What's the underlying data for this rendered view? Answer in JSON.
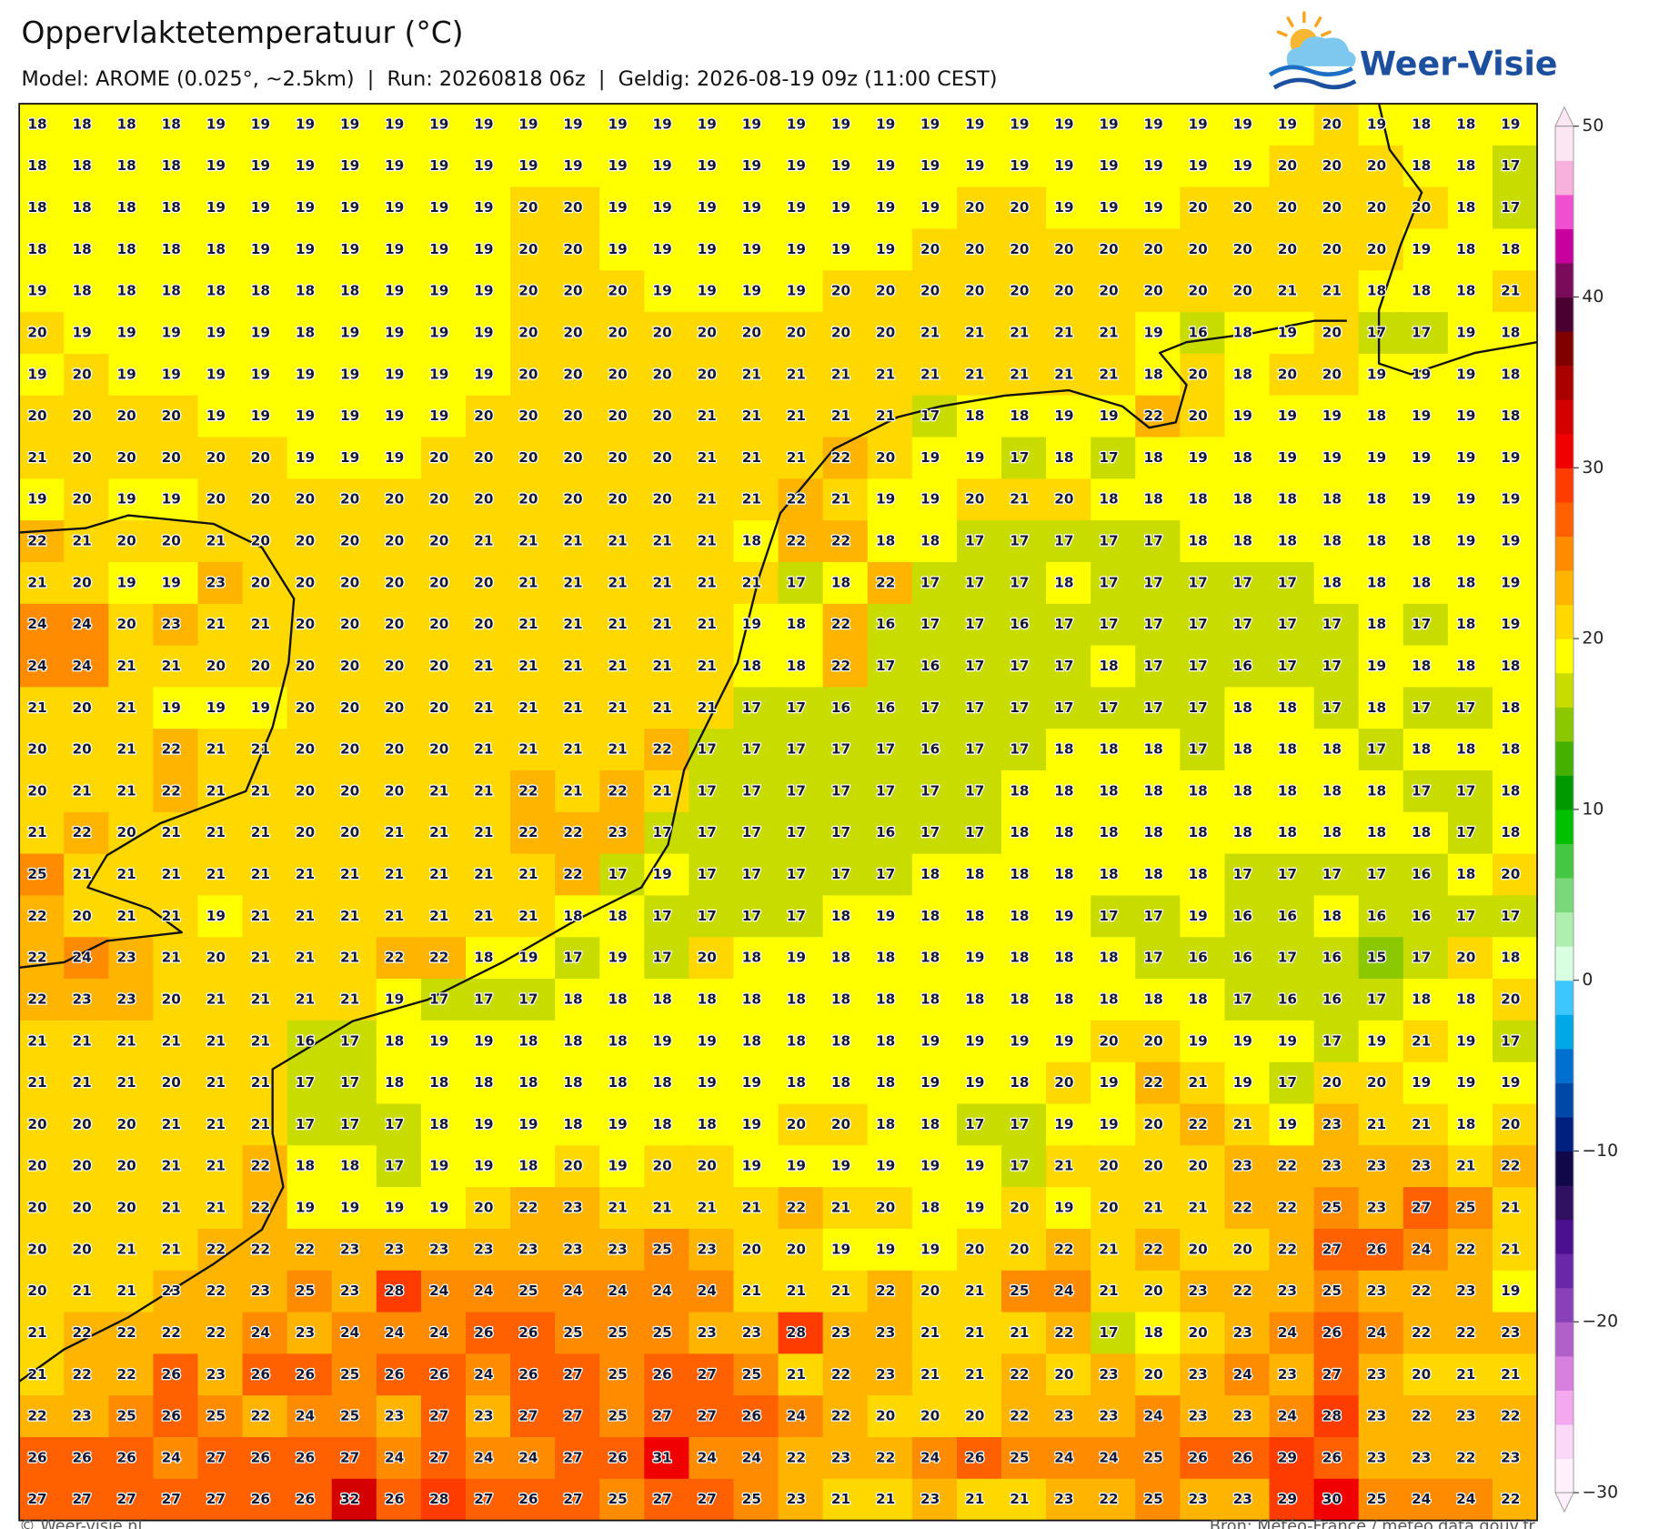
{
  "header": {
    "title": "Oppervlaktetemperatuur (°C)",
    "subtitle": "Model: AROME (0.025°, ~2.5km)  |  Run: 20260818 06z  |  Geldig: 2026-08-19 09z (11:00 CEST)",
    "logo": "Weer-Visie"
  },
  "grid": {
    "values": [
      [
        18,
        18,
        18,
        18,
        19,
        19,
        19,
        19,
        19,
        19,
        19,
        19,
        19,
        19,
        19,
        19,
        19,
        19,
        19,
        19,
        19,
        19,
        19,
        19,
        19,
        19,
        19,
        19,
        19,
        20,
        19,
        18,
        18,
        19
      ],
      [
        18,
        18,
        18,
        18,
        19,
        19,
        19,
        19,
        19,
        19,
        19,
        19,
        19,
        19,
        19,
        19,
        19,
        19,
        19,
        19,
        19,
        19,
        19,
        19,
        19,
        19,
        19,
        19,
        20,
        20,
        20,
        18,
        18,
        17
      ],
      [
        18,
        18,
        18,
        18,
        19,
        19,
        19,
        19,
        19,
        19,
        19,
        20,
        20,
        19,
        19,
        19,
        19,
        19,
        19,
        19,
        19,
        20,
        20,
        19,
        19,
        19,
        20,
        20,
        20,
        20,
        20,
        20,
        18,
        17
      ],
      [
        18,
        18,
        18,
        18,
        18,
        19,
        19,
        19,
        19,
        19,
        19,
        20,
        20,
        19,
        19,
        19,
        19,
        19,
        19,
        19,
        20,
        20,
        20,
        20,
        20,
        20,
        20,
        20,
        20,
        20,
        20,
        19,
        18,
        18
      ],
      [
        19,
        18,
        18,
        18,
        18,
        18,
        18,
        18,
        19,
        19,
        19,
        20,
        20,
        20,
        19,
        19,
        19,
        19,
        20,
        20,
        20,
        20,
        20,
        20,
        20,
        20,
        20,
        20,
        21,
        21,
        18,
        18,
        18,
        21
      ],
      [
        20,
        19,
        19,
        19,
        19,
        19,
        18,
        19,
        19,
        19,
        19,
        20,
        20,
        20,
        20,
        20,
        20,
        20,
        20,
        20,
        21,
        21,
        21,
        21,
        21,
        19,
        16,
        18,
        19,
        20,
        17,
        17,
        19,
        18
      ],
      [
        19,
        20,
        19,
        19,
        19,
        19,
        19,
        19,
        19,
        19,
        19,
        20,
        20,
        20,
        20,
        20,
        21,
        21,
        21,
        21,
        21,
        21,
        21,
        21,
        21,
        18,
        20,
        18,
        20,
        20,
        19,
        19,
        19,
        18
      ],
      [
        20,
        20,
        20,
        20,
        19,
        19,
        19,
        19,
        19,
        19,
        20,
        20,
        20,
        20,
        20,
        21,
        21,
        21,
        21,
        21,
        17,
        18,
        18,
        19,
        19,
        22,
        20,
        19,
        19,
        19,
        18,
        19,
        19,
        18
      ],
      [
        21,
        20,
        20,
        20,
        20,
        20,
        19,
        19,
        19,
        20,
        20,
        20,
        20,
        20,
        20,
        21,
        21,
        21,
        22,
        20,
        19,
        19,
        17,
        18,
        17,
        18,
        19,
        18,
        19,
        19,
        19,
        19,
        19,
        19
      ],
      [
        19,
        20,
        19,
        19,
        20,
        20,
        20,
        20,
        20,
        20,
        20,
        20,
        20,
        20,
        20,
        21,
        21,
        22,
        21,
        19,
        19,
        20,
        21,
        20,
        18,
        18,
        18,
        18,
        18,
        18,
        18,
        19,
        19,
        19
      ],
      [
        22,
        21,
        20,
        20,
        21,
        20,
        20,
        20,
        20,
        20,
        21,
        21,
        21,
        21,
        21,
        21,
        18,
        22,
        22,
        18,
        18,
        17,
        17,
        17,
        17,
        17,
        18,
        18,
        18,
        18,
        18,
        18,
        19,
        19
      ],
      [
        21,
        20,
        19,
        19,
        23,
        20,
        20,
        20,
        20,
        20,
        20,
        21,
        21,
        21,
        21,
        21,
        21,
        17,
        18,
        22,
        17,
        17,
        17,
        18,
        17,
        17,
        17,
        17,
        17,
        18,
        18,
        18,
        18,
        19
      ],
      [
        24,
        24,
        20,
        23,
        21,
        21,
        20,
        20,
        20,
        20,
        20,
        21,
        21,
        21,
        21,
        21,
        19,
        18,
        22,
        16,
        17,
        17,
        16,
        17,
        17,
        17,
        17,
        17,
        17,
        17,
        18,
        17,
        18,
        19
      ],
      [
        24,
        24,
        21,
        21,
        20,
        20,
        20,
        20,
        20,
        20,
        21,
        21,
        21,
        21,
        21,
        21,
        18,
        18,
        22,
        17,
        16,
        17,
        17,
        17,
        18,
        17,
        17,
        16,
        17,
        17,
        19,
        18,
        18,
        18
      ],
      [
        21,
        20,
        21,
        19,
        19,
        19,
        20,
        20,
        20,
        20,
        21,
        21,
        21,
        21,
        21,
        21,
        17,
        17,
        16,
        16,
        17,
        17,
        17,
        17,
        17,
        17,
        17,
        18,
        18,
        17,
        18,
        17,
        17,
        18
      ],
      [
        20,
        20,
        21,
        22,
        21,
        21,
        20,
        20,
        20,
        20,
        21,
        21,
        21,
        21,
        22,
        17,
        17,
        17,
        17,
        17,
        16,
        17,
        17,
        18,
        18,
        18,
        17,
        18,
        18,
        18,
        17,
        18,
        18,
        18
      ],
      [
        20,
        21,
        21,
        22,
        21,
        21,
        20,
        20,
        20,
        21,
        21,
        22,
        21,
        22,
        21,
        17,
        17,
        17,
        17,
        17,
        17,
        17,
        18,
        18,
        18,
        18,
        18,
        18,
        18,
        18,
        18,
        17,
        17,
        18
      ],
      [
        21,
        22,
        20,
        21,
        21,
        21,
        20,
        20,
        21,
        21,
        21,
        22,
        22,
        23,
        17,
        17,
        17,
        17,
        17,
        16,
        17,
        17,
        18,
        18,
        18,
        18,
        18,
        18,
        18,
        18,
        18,
        18,
        17,
        18
      ],
      [
        25,
        21,
        21,
        21,
        21,
        21,
        21,
        21,
        21,
        21,
        21,
        21,
        22,
        17,
        19,
        17,
        17,
        17,
        17,
        17,
        18,
        18,
        18,
        18,
        18,
        18,
        18,
        17,
        17,
        17,
        17,
        16,
        18,
        20
      ],
      [
        22,
        20,
        21,
        21,
        19,
        21,
        21,
        21,
        21,
        21,
        21,
        21,
        18,
        18,
        17,
        17,
        17,
        17,
        18,
        19,
        18,
        18,
        18,
        19,
        17,
        17,
        19,
        16,
        16,
        18,
        16,
        16,
        17,
        17
      ],
      [
        22,
        24,
        23,
        21,
        20,
        21,
        21,
        21,
        22,
        22,
        18,
        19,
        17,
        19,
        17,
        20,
        18,
        19,
        18,
        18,
        18,
        19,
        18,
        18,
        18,
        17,
        16,
        16,
        17,
        16,
        15,
        17,
        20,
        18
      ],
      [
        22,
        23,
        23,
        20,
        21,
        21,
        21,
        21,
        19,
        17,
        17,
        17,
        18,
        18,
        18,
        18,
        18,
        18,
        18,
        18,
        18,
        18,
        18,
        18,
        18,
        18,
        18,
        17,
        16,
        16,
        17,
        18,
        18,
        20
      ],
      [
        21,
        21,
        21,
        21,
        21,
        21,
        16,
        17,
        18,
        19,
        19,
        18,
        18,
        18,
        19,
        19,
        18,
        18,
        18,
        18,
        19,
        19,
        19,
        19,
        20,
        20,
        19,
        19,
        19,
        17,
        19,
        21,
        19,
        17
      ],
      [
        21,
        21,
        21,
        20,
        21,
        21,
        17,
        17,
        18,
        18,
        18,
        18,
        18,
        18,
        18,
        19,
        19,
        18,
        18,
        18,
        19,
        19,
        18,
        20,
        19,
        22,
        21,
        19,
        17,
        20,
        20,
        19,
        19,
        19
      ],
      [
        20,
        20,
        20,
        21,
        21,
        21,
        17,
        17,
        17,
        18,
        19,
        19,
        18,
        19,
        18,
        18,
        19,
        20,
        20,
        18,
        18,
        17,
        17,
        19,
        19,
        20,
        22,
        21,
        19,
        23,
        21,
        21,
        18,
        20
      ],
      [
        20,
        20,
        20,
        21,
        21,
        22,
        18,
        18,
        17,
        19,
        19,
        18,
        20,
        19,
        20,
        20,
        19,
        19,
        19,
        19,
        19,
        19,
        17,
        21,
        20,
        20,
        20,
        23,
        22,
        23,
        23,
        23,
        21,
        22
      ],
      [
        20,
        20,
        20,
        21,
        21,
        22,
        19,
        19,
        19,
        19,
        20,
        22,
        23,
        21,
        21,
        21,
        21,
        22,
        21,
        20,
        18,
        19,
        20,
        19,
        20,
        21,
        21,
        22,
        22,
        25,
        23,
        27,
        25,
        21
      ],
      [
        20,
        20,
        21,
        21,
        22,
        22,
        22,
        23,
        23,
        23,
        23,
        23,
        23,
        23,
        25,
        23,
        20,
        20,
        19,
        19,
        19,
        20,
        20,
        22,
        21,
        22,
        20,
        20,
        22,
        27,
        26,
        24,
        22,
        21
      ],
      [
        20,
        21,
        21,
        23,
        22,
        23,
        25,
        23,
        28,
        24,
        24,
        25,
        24,
        24,
        24,
        24,
        21,
        21,
        21,
        22,
        20,
        21,
        25,
        24,
        21,
        20,
        23,
        22,
        23,
        25,
        23,
        22,
        23,
        19
      ],
      [
        21,
        22,
        22,
        22,
        22,
        24,
        23,
        24,
        24,
        24,
        26,
        26,
        25,
        25,
        25,
        23,
        23,
        28,
        23,
        23,
        21,
        21,
        21,
        22,
        17,
        18,
        20,
        23,
        24,
        26,
        24,
        22,
        22,
        23
      ],
      [
        21,
        22,
        22,
        26,
        23,
        26,
        26,
        25,
        26,
        26,
        24,
        26,
        27,
        25,
        26,
        27,
        25,
        21,
        22,
        23,
        21,
        21,
        22,
        20,
        23,
        20,
        23,
        24,
        23,
        27,
        23,
        20,
        21,
        21
      ],
      [
        22,
        23,
        25,
        26,
        25,
        22,
        24,
        25,
        23,
        27,
        23,
        27,
        27,
        25,
        27,
        27,
        26,
        24,
        22,
        20,
        20,
        20,
        22,
        23,
        23,
        24,
        23,
        23,
        24,
        28,
        23,
        22,
        23,
        22
      ],
      [
        26,
        26,
        26,
        24,
        27,
        26,
        26,
        27,
        24,
        27,
        24,
        24,
        27,
        26,
        31,
        24,
        24,
        22,
        23,
        22,
        24,
        26,
        25,
        24,
        24,
        25,
        26,
        26,
        29,
        26,
        23,
        23,
        22,
        23
      ],
      [
        27,
        27,
        27,
        27,
        27,
        26,
        26,
        32,
        26,
        28,
        27,
        26,
        27,
        25,
        27,
        27,
        25,
        23,
        21,
        21,
        23,
        21,
        21,
        23,
        22,
        25,
        23,
        23,
        29,
        30,
        25,
        24,
        24,
        22
      ]
    ]
  },
  "colorbar": {
    "lim": [
      -30,
      50
    ],
    "ticks": [
      50,
      40,
      30,
      20,
      10,
      0,
      {
        "value": -10,
        "label": "−10"
      },
      {
        "value": -20,
        "label": "−20"
      },
      {
        "value": -30,
        "label": "−30"
      }
    ],
    "colors": [
      "#fff0fc",
      "#fcd8f8",
      "#f4a8f0",
      "#d880e0",
      "#b060c8",
      "#8a40b8",
      "#6a28a8",
      "#4a1090",
      "#301060",
      "#100848",
      "#002080",
      "#0048a8",
      "#0070d0",
      "#00a8e8",
      "#3cc8ff",
      "#d8ffe0",
      "#aeeeae",
      "#7ad87a",
      "#44c844",
      "#00c000",
      "#009a00",
      "#46b000",
      "#8cc800",
      "#c8dc00",
      "#ffff00",
      "#ffd800",
      "#ffb400",
      "#ff8c00",
      "#ff6000",
      "#ff3c00",
      "#f00000",
      "#d40000",
      "#aa0000",
      "#800000",
      "#4a0030",
      "#7a0a5a",
      "#c8009e",
      "#f050d0",
      "#f8b0dc",
      "#fde6f4"
    ]
  },
  "footer": {
    "credit": "© Weer-visie.nl",
    "source": "Bron: Météo-France / meteo.data.gouv.fr"
  }
}
